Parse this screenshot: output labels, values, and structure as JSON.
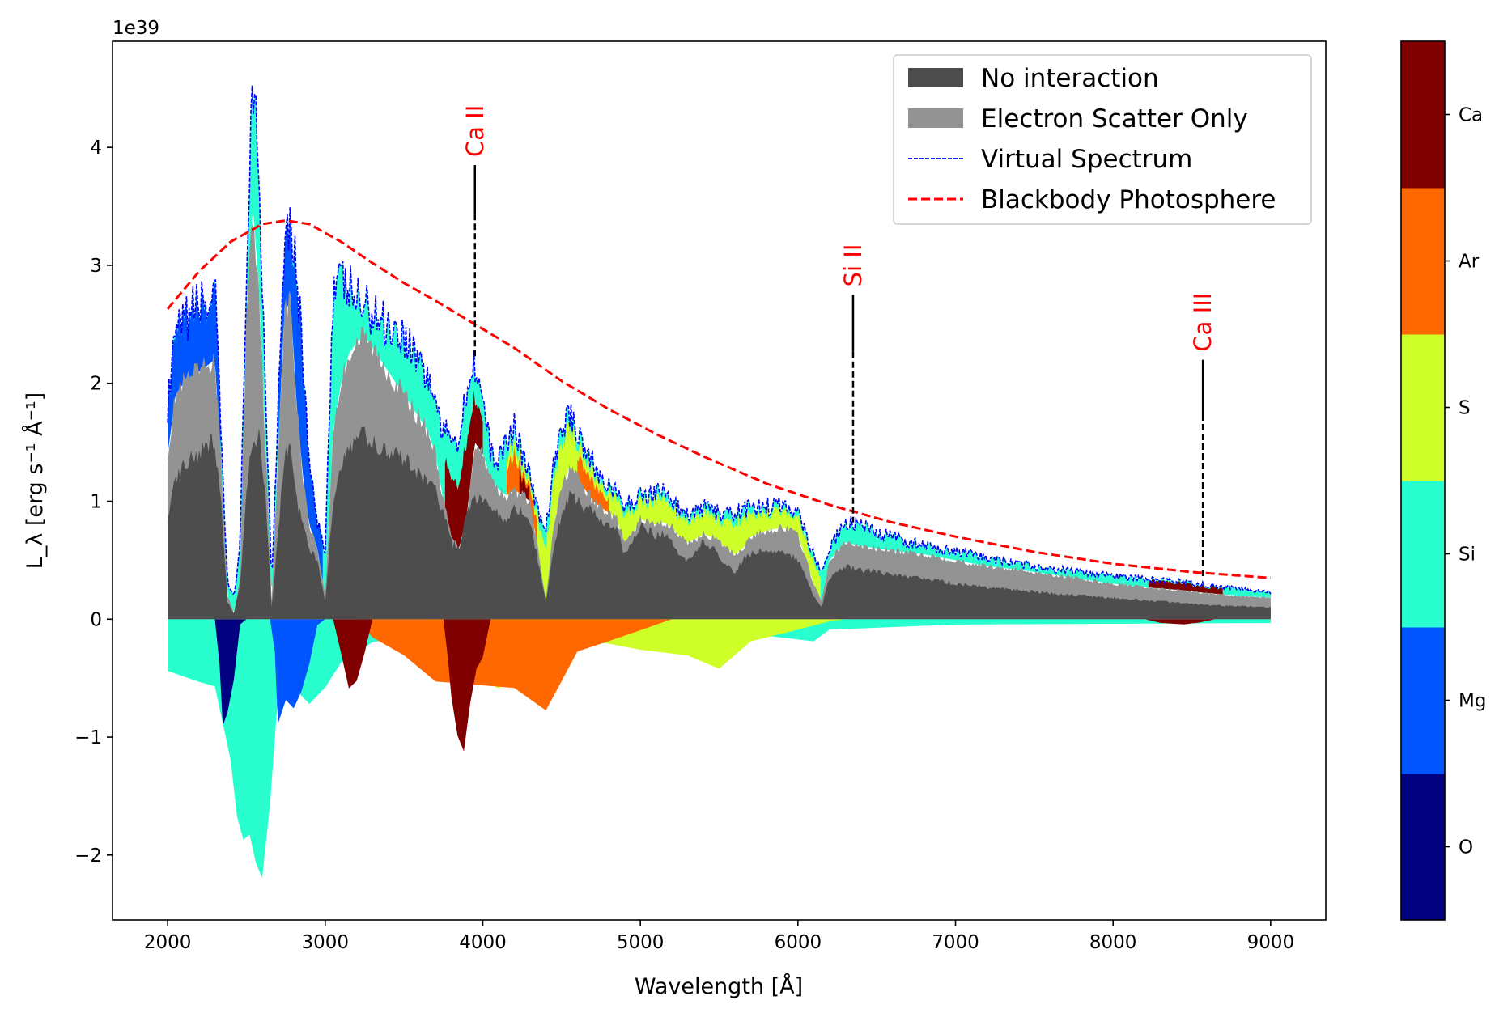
{
  "chart_data": {
    "type": "area",
    "xlabel": "Wavelength [Å]",
    "ylabel": "L_λ [erg s⁻¹ Å⁻¹]",
    "y_offset_text": "1e39",
    "xlim": [
      1650,
      9350
    ],
    "ylim": [
      -2.55,
      4.9
    ],
    "x_ticks": [
      2000,
      3000,
      4000,
      5000,
      6000,
      7000,
      8000,
      9000
    ],
    "y_ticks": [
      -2,
      -1,
      0,
      1,
      2,
      3,
      4
    ],
    "legend": {
      "placement": "upper right",
      "entries": [
        {
          "label": "No interaction",
          "color": "#4d4d4d",
          "kind": "patch"
        },
        {
          "label": "Electron Scatter Only",
          "color": "#939393",
          "kind": "patch"
        },
        {
          "label": "Virtual Spectrum",
          "color": "#0000ff",
          "kind": "dashed-thin"
        },
        {
          "label": "Blackbody Photosphere",
          "color": "#ff0000",
          "kind": "dashed"
        }
      ]
    },
    "colorbar": {
      "elements": [
        "O",
        "Mg",
        "Si",
        "S",
        "Ar",
        "Ca"
      ],
      "colors": [
        "#000080",
        "#0055ff",
        "#29ffce",
        "#ceff29",
        "#ff6800",
        "#800000"
      ]
    },
    "line_ids": [
      {
        "label": "Ca II",
        "x": 3950,
        "y_top": 3.85,
        "y_bottom": 2.2
      },
      {
        "label": "Si II",
        "x": 6350,
        "y_top": 2.75,
        "y_bottom": 0.82
      },
      {
        "label": "Ca III",
        "x": 8570,
        "y_top": 2.2,
        "y_bottom": 0.35
      }
    ],
    "series": [
      {
        "name": "No interaction",
        "x": [
          2000,
          2050,
          2100,
          2150,
          2200,
          2250,
          2300,
          2340,
          2380,
          2420,
          2460,
          2500,
          2540,
          2580,
          2620,
          2660,
          2700,
          2740,
          2780,
          2820,
          2860,
          2900,
          2950,
          3000,
          3050,
          3100,
          3150,
          3200,
          3250,
          3300,
          3350,
          3400,
          3450,
          3500,
          3550,
          3600,
          3650,
          3700,
          3750,
          3800,
          3850,
          3900,
          3950,
          4000,
          4050,
          4100,
          4150,
          4200,
          4250,
          4300,
          4350,
          4400,
          4450,
          4500,
          4550,
          4600,
          4650,
          4700,
          4750,
          4800,
          4850,
          4900,
          4950,
          5000,
          5050,
          5100,
          5150,
          5200,
          5250,
          5300,
          5350,
          5400,
          5450,
          5500,
          5550,
          5600,
          5650,
          5700,
          5800,
          5900,
          6000,
          6100,
          6150,
          6200,
          6300,
          6400,
          6500,
          6600,
          6800,
          7000,
          7200,
          7400,
          7600,
          7800,
          8000,
          8200,
          8400,
          8600,
          8800,
          9000
        ],
        "y": [
          0.9,
          1.2,
          1.3,
          1.35,
          1.4,
          1.5,
          1.5,
          1.0,
          0.15,
          0.05,
          0.3,
          1.1,
          1.5,
          1.6,
          1.1,
          0.1,
          0.7,
          1.4,
          1.45,
          1.0,
          0.8,
          0.6,
          0.5,
          0.15,
          1.0,
          1.3,
          1.45,
          1.55,
          1.55,
          1.5,
          1.45,
          1.4,
          1.4,
          1.35,
          1.3,
          1.25,
          1.15,
          1.1,
          0.9,
          0.65,
          0.6,
          0.9,
          1.05,
          1.0,
          0.95,
          0.9,
          0.85,
          0.95,
          0.9,
          0.8,
          0.5,
          0.15,
          0.6,
          0.9,
          1.05,
          1.0,
          0.95,
          0.9,
          0.85,
          0.8,
          0.75,
          0.55,
          0.65,
          0.8,
          0.75,
          0.7,
          0.72,
          0.68,
          0.55,
          0.5,
          0.6,
          0.65,
          0.62,
          0.55,
          0.45,
          0.4,
          0.5,
          0.55,
          0.6,
          0.58,
          0.5,
          0.2,
          0.1,
          0.35,
          0.45,
          0.42,
          0.4,
          0.38,
          0.35,
          0.3,
          0.27,
          0.25,
          0.22,
          0.2,
          0.18,
          0.16,
          0.14,
          0.12,
          0.11,
          0.1
        ]
      },
      {
        "name": "Electron Scatter Only",
        "x": [
          2000,
          2050,
          2100,
          2150,
          2200,
          2250,
          2300,
          2340,
          2380,
          2420,
          2460,
          2500,
          2540,
          2580,
          2620,
          2660,
          2700,
          2740,
          2780,
          2820,
          2860,
          2900,
          2950,
          3000,
          3050,
          3100,
          3150,
          3200,
          3250,
          3300,
          3350,
          3400,
          3450,
          3500,
          3550,
          3600,
          3650,
          3700,
          3750,
          3800,
          3850,
          3900,
          3950,
          4000,
          4050,
          4100,
          4150,
          4200,
          4250,
          4300,
          4350,
          4400,
          4450,
          4500,
          4550,
          4600,
          4650,
          4700,
          4750,
          4800,
          4850,
          4900,
          4950,
          5000,
          5050,
          5100,
          5150,
          5200,
          5250,
          5300,
          5350,
          5400,
          5450,
          5500,
          5550,
          5600,
          5650,
          5700,
          5800,
          5900,
          6000,
          6100,
          6150,
          6200,
          6300,
          6400,
          6500,
          6600,
          6800,
          7000,
          7200,
          7400,
          7600,
          7800,
          8000,
          8200,
          8400,
          8600,
          8800,
          9000
        ],
        "y": [
          1.4,
          1.9,
          2.0,
          2.05,
          2.1,
          2.15,
          2.2,
          1.3,
          0.2,
          0.05,
          0.35,
          2.6,
          3.5,
          2.8,
          1.5,
          0.15,
          1.4,
          2.6,
          2.7,
          1.8,
          1.2,
          0.8,
          0.6,
          0.2,
          1.6,
          2.0,
          2.25,
          2.35,
          2.4,
          2.3,
          2.2,
          2.1,
          2.0,
          1.9,
          1.8,
          1.7,
          1.6,
          1.4,
          1.0,
          0.7,
          0.6,
          0.9,
          1.5,
          1.4,
          1.2,
          1.1,
          1.05,
          1.1,
          1.05,
          1.0,
          0.6,
          0.15,
          0.8,
          1.1,
          1.3,
          1.2,
          1.1,
          1.0,
          0.95,
          0.9,
          0.85,
          0.65,
          0.72,
          0.85,
          0.82,
          0.8,
          0.82,
          0.78,
          0.7,
          0.65,
          0.68,
          0.72,
          0.7,
          0.65,
          0.6,
          0.55,
          0.6,
          0.7,
          0.75,
          0.78,
          0.72,
          0.3,
          0.15,
          0.5,
          0.65,
          0.62,
          0.6,
          0.58,
          0.55,
          0.5,
          0.45,
          0.42,
          0.38,
          0.34,
          0.3,
          0.27,
          0.25,
          0.22,
          0.2,
          0.18
        ]
      },
      {
        "name": "Virtual Spectrum",
        "x": [
          2000,
          2050,
          2100,
          2150,
          2200,
          2250,
          2300,
          2340,
          2380,
          2420,
          2460,
          2500,
          2540,
          2580,
          2620,
          2660,
          2700,
          2740,
          2780,
          2820,
          2860,
          2900,
          2950,
          3000,
          3050,
          3100,
          3150,
          3200,
          3250,
          3300,
          3350,
          3400,
          3450,
          3500,
          3550,
          3600,
          3650,
          3700,
          3750,
          3800,
          3850,
          3900,
          3950,
          4000,
          4050,
          4100,
          4150,
          4200,
          4250,
          4300,
          4350,
          4400,
          4450,
          4500,
          4550,
          4600,
          4650,
          4700,
          4750,
          4800,
          4850,
          4900,
          4950,
          5000,
          5050,
          5100,
          5150,
          5200,
          5250,
          5300,
          5350,
          5400,
          5450,
          5500,
          5550,
          5600,
          5650,
          5700,
          5800,
          5900,
          6000,
          6100,
          6150,
          6200,
          6300,
          6400,
          6500,
          6600,
          6800,
          7000,
          7200,
          7400,
          7600,
          7800,
          8000,
          8200,
          8400,
          8600,
          8800,
          9000
        ],
        "y": [
          1.8,
          2.4,
          2.5,
          2.6,
          2.7,
          2.65,
          2.8,
          1.5,
          0.3,
          0.2,
          0.6,
          3.0,
          4.4,
          3.8,
          2.0,
          0.3,
          1.8,
          3.3,
          3.4,
          2.9,
          2.2,
          1.3,
          0.8,
          0.6,
          2.8,
          2.85,
          2.8,
          2.7,
          2.65,
          2.6,
          2.55,
          2.5,
          2.45,
          2.4,
          2.3,
          2.2,
          2.05,
          1.85,
          1.55,
          1.6,
          1.5,
          2.0,
          2.2,
          1.85,
          1.4,
          1.35,
          1.5,
          1.65,
          1.4,
          1.2,
          0.9,
          0.75,
          1.3,
          1.6,
          1.75,
          1.6,
          1.45,
          1.3,
          1.2,
          1.15,
          1.05,
          0.95,
          1.0,
          1.05,
          1.05,
          1.1,
          1.08,
          1.0,
          0.92,
          0.88,
          0.9,
          0.95,
          0.92,
          0.9,
          0.88,
          0.9,
          0.92,
          0.95,
          0.95,
          0.97,
          0.92,
          0.55,
          0.4,
          0.6,
          0.82,
          0.8,
          0.72,
          0.7,
          0.62,
          0.57,
          0.52,
          0.47,
          0.43,
          0.4,
          0.37,
          0.34,
          0.32,
          0.29,
          0.26,
          0.23
        ]
      },
      {
        "name": "Blackbody Photosphere",
        "x": [
          2000,
          2200,
          2400,
          2600,
          2750,
          2900,
          3100,
          3300,
          3500,
          3700,
          3950,
          4200,
          4500,
          4800,
          5100,
          5400,
          5800,
          6200,
          6600,
          7000,
          7500,
          8000,
          8500,
          9000
        ],
        "y": [
          2.63,
          2.95,
          3.2,
          3.35,
          3.38,
          3.35,
          3.2,
          3.02,
          2.85,
          2.7,
          2.5,
          2.3,
          2.02,
          1.78,
          1.57,
          1.38,
          1.15,
          0.97,
          0.82,
          0.7,
          0.57,
          0.47,
          0.4,
          0.35
        ]
      }
    ]
  }
}
